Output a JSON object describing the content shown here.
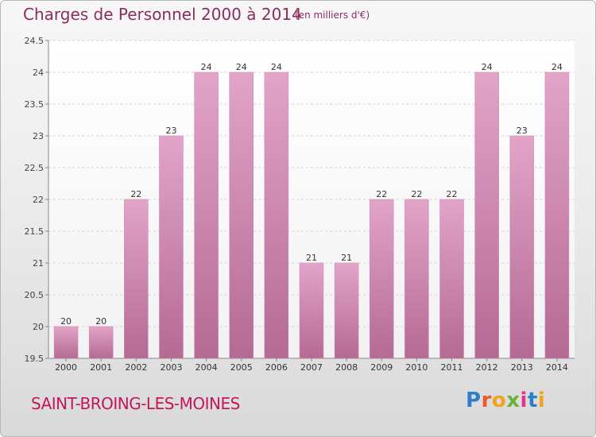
{
  "title": "Charges de Personnel 2000 à 2014",
  "subtitle": "(en milliers d'€)",
  "commune": "SAINT-BROING-LES-MOINES",
  "logo": {
    "text": "Proxiti",
    "letters": [
      "P",
      "r",
      "o",
      "x",
      "i",
      "t",
      "i"
    ],
    "colors": [
      "#2f7fc7",
      "#e85b2b",
      "#f2a31b",
      "#6bb33a",
      "#e8328f",
      "#2f7fc7",
      "#f2a31b"
    ]
  },
  "chart_data": {
    "type": "bar",
    "categories": [
      "2000",
      "2001",
      "2002",
      "2003",
      "2004",
      "2005",
      "2006",
      "2007",
      "2008",
      "2009",
      "2010",
      "2011",
      "2012",
      "2013",
      "2014"
    ],
    "values": [
      20,
      20,
      22,
      23,
      24,
      24,
      24,
      21,
      21,
      22,
      22,
      22,
      24,
      23,
      24
    ],
    "data_labels": [
      "20",
      "20",
      "22",
      "23",
      "24",
      "24",
      "24",
      "21",
      "21",
      "22",
      "22",
      "22",
      "24",
      "23",
      "24"
    ],
    "ylim": [
      19.5,
      24.5
    ],
    "yticks": [
      "19.5",
      "20",
      "20.5",
      "21",
      "21.5",
      "22",
      "22.5",
      "23",
      "23.5",
      "24",
      "24.5"
    ],
    "grid": true,
    "bar_color": "#d98ab6",
    "bar_color_dark": "#a8547f"
  }
}
